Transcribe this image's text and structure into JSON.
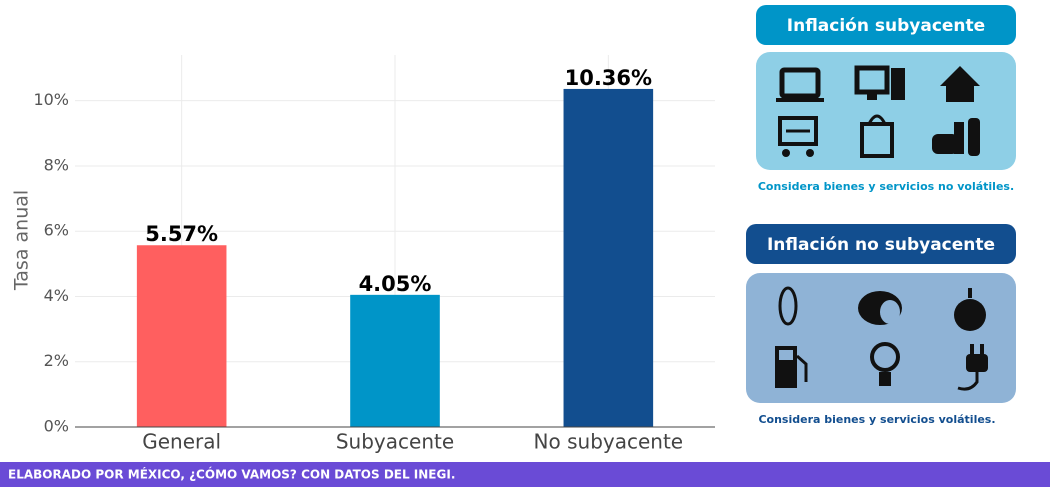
{
  "chart_data": {
    "type": "bar",
    "y_label": "Tasa anual",
    "categories": [
      "General",
      "Subyacente",
      "No subyacente"
    ],
    "values": [
      5.57,
      4.05,
      10.36
    ],
    "value_labels": [
      "5.57%",
      "4.05%",
      "10.36%"
    ],
    "colors": [
      "#ff5f5f",
      "#0095c8",
      "#124e8f"
    ],
    "ylim": [
      0,
      11.4
    ],
    "yticks": [
      {
        "value": 0,
        "label": "0%"
      },
      {
        "value": 2,
        "label": "2%"
      },
      {
        "value": 4,
        "label": "4%"
      },
      {
        "value": 6,
        "label": "6%"
      },
      {
        "value": 8,
        "label": "8%"
      },
      {
        "value": 10,
        "label": "10%"
      }
    ],
    "grid": true
  },
  "panels": [
    {
      "title": "Inflación subyacente",
      "caption": "Considera bienes y servicios no volátiles."
    },
    {
      "title": "Inflación no subyacente",
      "caption": "Considera bienes y servicios volátiles."
    }
  ],
  "footer": "ELABORADO POR MÉXICO, ¿CÓMO VAMOS? CON DATOS DEL INEGI."
}
